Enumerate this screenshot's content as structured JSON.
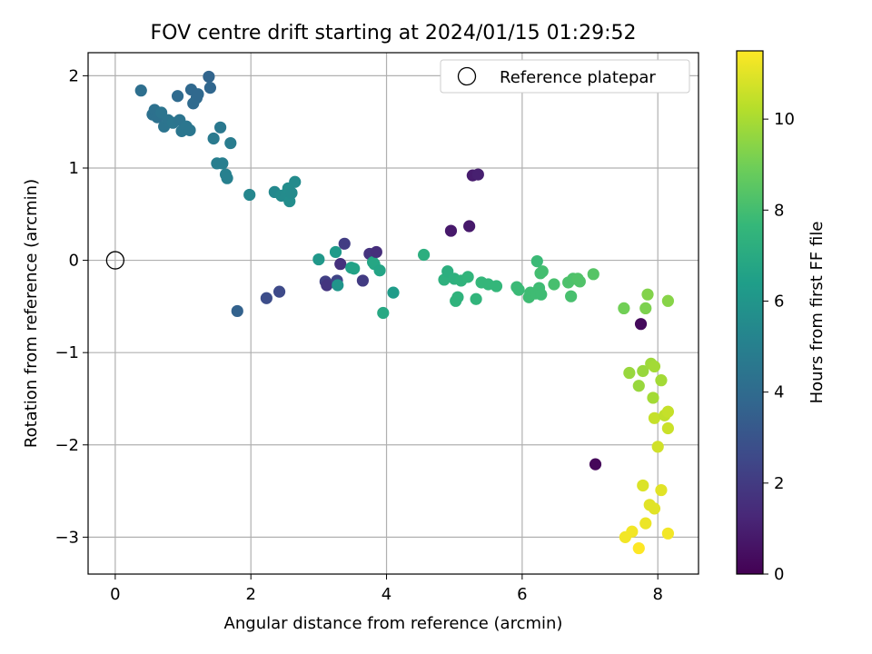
{
  "chart_data": {
    "type": "scatter",
    "title": "FOV centre drift starting at 2024/01/15 01:29:52",
    "xlabel": "Angular distance from reference (arcmin)",
    "ylabel": "Rotation from reference (arcmin)",
    "xlim": [
      -0.4,
      8.6
    ],
    "ylim": [
      -3.4,
      2.25
    ],
    "xticks": [
      0,
      2,
      4,
      6,
      8
    ],
    "xtick_labels": [
      "0",
      "2",
      "4",
      "6",
      "8"
    ],
    "yticks": [
      -3,
      -2,
      -1,
      0,
      1,
      2
    ],
    "ytick_labels": [
      "−3",
      "−2",
      "−1",
      "0",
      "1",
      "2"
    ],
    "grid": true,
    "legend": {
      "placement": "top-right",
      "entries": [
        "Reference platepar"
      ]
    },
    "colorbar": {
      "label": "Hours from first FF file",
      "colormap": "viridis",
      "range": [
        0,
        11.5
      ],
      "ticks": [
        0,
        2,
        4,
        6,
        8,
        10
      ],
      "tick_labels": [
        "0",
        "2",
        "4",
        "6",
        "8",
        "10"
      ]
    },
    "reference_point": {
      "x": 0,
      "y": 0
    },
    "points": [
      {
        "x": 0.38,
        "y": 1.84,
        "t": 4.2
      },
      {
        "x": 0.55,
        "y": 1.58,
        "t": 4.3
      },
      {
        "x": 0.58,
        "y": 1.63,
        "t": 4.3
      },
      {
        "x": 0.62,
        "y": 1.55,
        "t": 4.3
      },
      {
        "x": 0.68,
        "y": 1.6,
        "t": 4.4
      },
      {
        "x": 0.72,
        "y": 1.45,
        "t": 4.4
      },
      {
        "x": 0.78,
        "y": 1.52,
        "t": 4.4
      },
      {
        "x": 0.85,
        "y": 1.49,
        "t": 4.5
      },
      {
        "x": 0.92,
        "y": 1.78,
        "t": 4.0
      },
      {
        "x": 0.95,
        "y": 1.52,
        "t": 4.4
      },
      {
        "x": 0.98,
        "y": 1.4,
        "t": 4.5
      },
      {
        "x": 1.05,
        "y": 1.45,
        "t": 4.5
      },
      {
        "x": 1.1,
        "y": 1.41,
        "t": 4.5
      },
      {
        "x": 1.12,
        "y": 1.85,
        "t": 3.9
      },
      {
        "x": 1.15,
        "y": 1.7,
        "t": 4.0
      },
      {
        "x": 1.2,
        "y": 1.76,
        "t": 4.0
      },
      {
        "x": 1.22,
        "y": 1.8,
        "t": 3.9
      },
      {
        "x": 1.38,
        "y": 1.99,
        "t": 3.7
      },
      {
        "x": 1.4,
        "y": 1.87,
        "t": 3.8
      },
      {
        "x": 1.45,
        "y": 1.32,
        "t": 4.7
      },
      {
        "x": 1.5,
        "y": 1.05,
        "t": 4.9
      },
      {
        "x": 1.55,
        "y": 1.44,
        "t": 4.6
      },
      {
        "x": 1.58,
        "y": 1.05,
        "t": 4.9
      },
      {
        "x": 1.63,
        "y": 0.93,
        "t": 5.0
      },
      {
        "x": 1.65,
        "y": 0.89,
        "t": 5.0
      },
      {
        "x": 1.7,
        "y": 1.27,
        "t": 4.8
      },
      {
        "x": 1.98,
        "y": 0.71,
        "t": 5.3
      },
      {
        "x": 2.35,
        "y": 0.74,
        "t": 5.4
      },
      {
        "x": 2.45,
        "y": 0.7,
        "t": 5.5
      },
      {
        "x": 2.52,
        "y": 0.72,
        "t": 5.5
      },
      {
        "x": 2.55,
        "y": 0.78,
        "t": 5.6
      },
      {
        "x": 2.57,
        "y": 0.64,
        "t": 5.6
      },
      {
        "x": 2.6,
        "y": 0.73,
        "t": 5.5
      },
      {
        "x": 2.65,
        "y": 0.85,
        "t": 5.5
      },
      {
        "x": 1.8,
        "y": -0.55,
        "t": 3.6
      },
      {
        "x": 2.23,
        "y": -0.41,
        "t": 2.7
      },
      {
        "x": 2.42,
        "y": -0.34,
        "t": 2.6
      },
      {
        "x": 3.0,
        "y": 0.01,
        "t": 6.1
      },
      {
        "x": 3.1,
        "y": -0.23,
        "t": 2.2
      },
      {
        "x": 3.12,
        "y": -0.27,
        "t": 1.8
      },
      {
        "x": 3.25,
        "y": 0.09,
        "t": 6.2
      },
      {
        "x": 3.27,
        "y": -0.22,
        "t": 2.4
      },
      {
        "x": 3.28,
        "y": -0.27,
        "t": 6.0
      },
      {
        "x": 3.32,
        "y": -0.04,
        "t": 1.6
      },
      {
        "x": 3.38,
        "y": 0.18,
        "t": 2.1
      },
      {
        "x": 3.48,
        "y": -0.08,
        "t": 6.5
      },
      {
        "x": 3.52,
        "y": -0.09,
        "t": 6.6
      },
      {
        "x": 3.65,
        "y": -0.22,
        "t": 2.0
      },
      {
        "x": 3.75,
        "y": 0.07,
        "t": 1.7
      },
      {
        "x": 3.8,
        "y": -0.02,
        "t": 6.7
      },
      {
        "x": 3.82,
        "y": -0.04,
        "t": 6.8
      },
      {
        "x": 3.85,
        "y": 0.09,
        "t": 1.5
      },
      {
        "x": 3.9,
        "y": -0.11,
        "t": 6.7
      },
      {
        "x": 3.95,
        "y": -0.57,
        "t": 6.9
      },
      {
        "x": 4.1,
        "y": -0.35,
        "t": 6.3
      },
      {
        "x": 4.55,
        "y": 0.06,
        "t": 7.2
      },
      {
        "x": 4.85,
        "y": -0.21,
        "t": 7.3
      },
      {
        "x": 4.9,
        "y": -0.12,
        "t": 7.2
      },
      {
        "x": 4.95,
        "y": 0.32,
        "t": 0.8
      },
      {
        "x": 5.0,
        "y": -0.2,
        "t": 7.3
      },
      {
        "x": 5.02,
        "y": -0.44,
        "t": 7.4
      },
      {
        "x": 5.05,
        "y": -0.4,
        "t": 7.4
      },
      {
        "x": 5.1,
        "y": -0.22,
        "t": 7.4
      },
      {
        "x": 5.2,
        "y": -0.18,
        "t": 7.5
      },
      {
        "x": 5.22,
        "y": 0.37,
        "t": 0.8
      },
      {
        "x": 5.27,
        "y": 0.92,
        "t": 0.9
      },
      {
        "x": 5.32,
        "y": -0.42,
        "t": 7.5
      },
      {
        "x": 5.35,
        "y": 0.93,
        "t": 1.0
      },
      {
        "x": 5.4,
        "y": -0.24,
        "t": 7.6
      },
      {
        "x": 5.5,
        "y": -0.26,
        "t": 7.6
      },
      {
        "x": 5.62,
        "y": -0.28,
        "t": 7.6
      },
      {
        "x": 5.92,
        "y": -0.29,
        "t": 7.8
      },
      {
        "x": 5.95,
        "y": -0.32,
        "t": 7.8
      },
      {
        "x": 6.1,
        "y": -0.4,
        "t": 7.9
      },
      {
        "x": 6.12,
        "y": -0.35,
        "t": 7.9
      },
      {
        "x": 6.2,
        "y": -0.36,
        "t": 7.9
      },
      {
        "x": 6.22,
        "y": -0.01,
        "t": 7.8
      },
      {
        "x": 6.25,
        "y": -0.3,
        "t": 7.9
      },
      {
        "x": 6.27,
        "y": -0.14,
        "t": 8.0
      },
      {
        "x": 6.28,
        "y": -0.37,
        "t": 7.9
      },
      {
        "x": 6.3,
        "y": -0.12,
        "t": 8.0
      },
      {
        "x": 6.47,
        "y": -0.26,
        "t": 8.1
      },
      {
        "x": 6.68,
        "y": -0.24,
        "t": 8.2
      },
      {
        "x": 6.72,
        "y": -0.39,
        "t": 8.1
      },
      {
        "x": 6.75,
        "y": -0.2,
        "t": 8.2
      },
      {
        "x": 6.82,
        "y": -0.2,
        "t": 8.3
      },
      {
        "x": 6.85,
        "y": -0.23,
        "t": 8.3
      },
      {
        "x": 7.05,
        "y": -0.15,
        "t": 8.4
      },
      {
        "x": 7.08,
        "y": -2.21,
        "t": 0.2
      },
      {
        "x": 7.5,
        "y": -0.52,
        "t": 9.0
      },
      {
        "x": 7.58,
        "y": -1.22,
        "t": 9.7
      },
      {
        "x": 7.75,
        "y": -0.69,
        "t": 0.3
      },
      {
        "x": 7.72,
        "y": -1.36,
        "t": 9.7
      },
      {
        "x": 7.78,
        "y": -1.2,
        "t": 9.7
      },
      {
        "x": 7.82,
        "y": -0.52,
        "t": 9.2
      },
      {
        "x": 7.85,
        "y": -0.37,
        "t": 9.3
      },
      {
        "x": 7.9,
        "y": -1.12,
        "t": 9.8
      },
      {
        "x": 7.95,
        "y": -1.15,
        "t": 9.9
      },
      {
        "x": 7.93,
        "y": -1.49,
        "t": 9.9
      },
      {
        "x": 7.95,
        "y": -1.71,
        "t": 10.5
      },
      {
        "x": 8.0,
        "y": -2.02,
        "t": 10.7
      },
      {
        "x": 8.05,
        "y": -1.3,
        "t": 9.9
      },
      {
        "x": 8.1,
        "y": -1.68,
        "t": 10.4
      },
      {
        "x": 8.15,
        "y": -1.64,
        "t": 10.5
      },
      {
        "x": 8.15,
        "y": -1.82,
        "t": 10.6
      },
      {
        "x": 8.15,
        "y": -0.44,
        "t": 9.4
      },
      {
        "x": 7.78,
        "y": -2.44,
        "t": 10.9
      },
      {
        "x": 7.88,
        "y": -2.65,
        "t": 11.0
      },
      {
        "x": 7.95,
        "y": -2.69,
        "t": 11.0
      },
      {
        "x": 8.05,
        "y": -2.49,
        "t": 11.0
      },
      {
        "x": 7.82,
        "y": -2.85,
        "t": 11.2
      },
      {
        "x": 7.62,
        "y": -2.94,
        "t": 11.3
      },
      {
        "x": 7.52,
        "y": -3.0,
        "t": 11.3
      },
      {
        "x": 7.72,
        "y": -3.12,
        "t": 11.5
      },
      {
        "x": 8.15,
        "y": -2.96,
        "t": 11.3
      }
    ],
    "colors": {
      "grid": "#b0b0b0",
      "axes": "#000000",
      "legend_border": "#cccccc",
      "viridis_stops": [
        "#440154",
        "#482878",
        "#3e4989",
        "#31688e",
        "#26828e",
        "#1f9e89",
        "#35b779",
        "#6ece58",
        "#b5de2b",
        "#fde725"
      ]
    }
  }
}
